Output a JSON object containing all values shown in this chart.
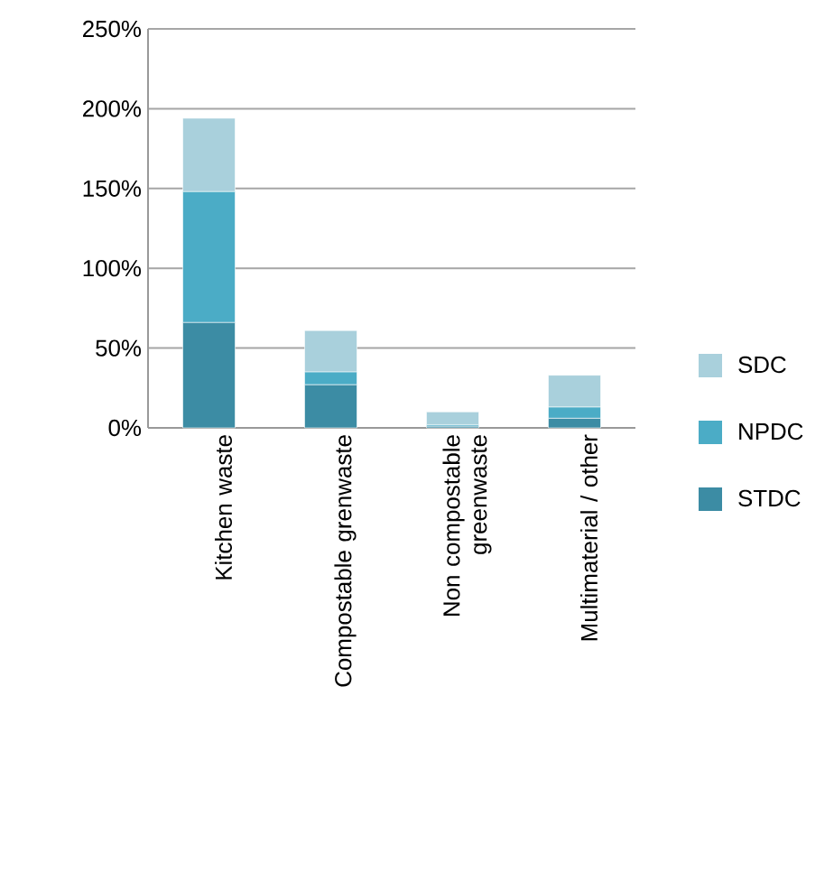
{
  "chart_data": {
    "type": "bar",
    "stacked": true,
    "categories": [
      "Kitchen waste",
      "Compostable grenwaste",
      "Non compostable greenwaste",
      "Multimaterial / other"
    ],
    "series": [
      {
        "name": "STDC",
        "color": "#3c8ca4",
        "values": [
          66,
          27,
          1,
          6
        ]
      },
      {
        "name": "NPDC",
        "color": "#4bacc6",
        "values": [
          82,
          8,
          1,
          7
        ]
      },
      {
        "name": "SDC",
        "color": "#a9d0dc",
        "values": [
          46,
          26,
          8,
          20
        ]
      }
    ],
    "ylim": [
      0,
      250
    ],
    "yticks": [
      {
        "value": 0,
        "label": "0%"
      },
      {
        "value": 50,
        "label": "50%"
      },
      {
        "value": 100,
        "label": "100%"
      },
      {
        "value": 150,
        "label": "150%"
      },
      {
        "value": 200,
        "label": "200%"
      },
      {
        "value": 250,
        "label": "250%"
      }
    ],
    "grid": "y",
    "legend": "right"
  }
}
